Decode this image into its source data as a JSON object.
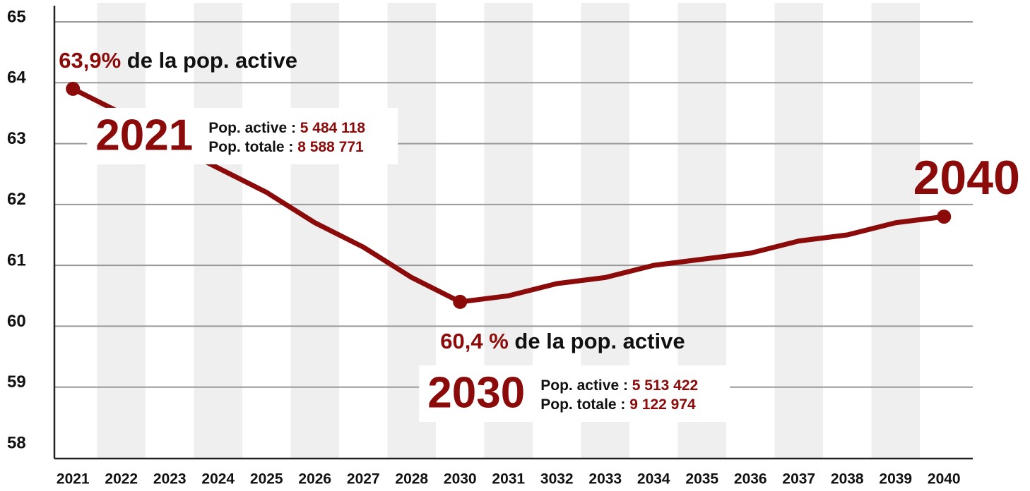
{
  "chart_data": {
    "type": "line",
    "categories": [
      "2021",
      "2022",
      "2023",
      "2024",
      "2025",
      "2026",
      "2027",
      "2028",
      "2030",
      "2031",
      "3032",
      "2033",
      "2034",
      "2035",
      "2036",
      "2037",
      "2038",
      "2039",
      "2040"
    ],
    "series": [
      {
        "color": "#8b0a0a",
        "values": [
          63.9,
          63.5,
          63.0,
          62.6,
          62.2,
          61.7,
          61.3,
          60.8,
          60.4,
          60.5,
          60.7,
          60.8,
          61.0,
          61.1,
          61.2,
          61.4,
          61.5,
          61.7,
          61.8
        ]
      }
    ],
    "ylim": [
      58,
      65
    ],
    "yticks": [
      58,
      59,
      60,
      61,
      62,
      63,
      64,
      65
    ],
    "grid": true,
    "annotations": [
      {
        "year": "2021",
        "pct": "63,9%",
        "text": "de la pop. active",
        "active_label": "Pop. active :",
        "active": "5 484 118",
        "total_label": "Pop. totale :",
        "total": "8 588 771"
      },
      {
        "year": "2030",
        "pct": "60,4 %",
        "text": "de la pop. active",
        "active_label": "Pop. active :",
        "active": "5 513 422",
        "total_label": "Pop. totale :",
        "total": "9 122 974"
      },
      {
        "year": "2040"
      }
    ]
  }
}
